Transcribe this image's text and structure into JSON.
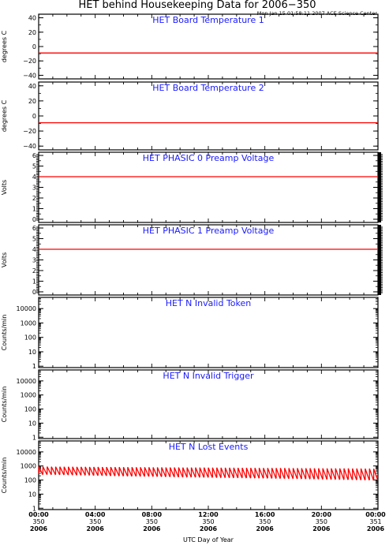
{
  "page": {
    "title": "HET behind Housekeeping Data for 2006−350",
    "timestamp": "Mon Jan 15 01:58:11 2007 ACE Science Center",
    "xlabel": "UTC Day of Year"
  },
  "x_ticks": [
    {
      "time": "00:00",
      "day": "350",
      "year": "2006"
    },
    {
      "time": "04:00",
      "day": "350",
      "year": "2006"
    },
    {
      "time": "08:00",
      "day": "350",
      "year": "2006"
    },
    {
      "time": "12:00",
      "day": "350",
      "year": "2006"
    },
    {
      "time": "16:00",
      "day": "350",
      "year": "2006"
    },
    {
      "time": "20:00",
      "day": "350",
      "year": "2006"
    },
    {
      "time": "00:00",
      "day": "351",
      "year": "2006"
    }
  ],
  "colors": {
    "frame": "#000000",
    "title": "#1a1aff",
    "data": "#ff0000"
  },
  "chart_data": [
    {
      "type": "line",
      "title": "HET Board Temperature 1",
      "ylabel": "degrees C",
      "yscale": "linear",
      "ylim": [
        -45,
        45
      ],
      "yticks": [
        40,
        20,
        0,
        -20,
        -40
      ],
      "ytick_labels": [
        "40",
        "20",
        "0",
        "−20",
        "−40"
      ],
      "xlim_hours": [
        0,
        24
      ],
      "series": [
        {
          "x_hours": [
            0,
            24
          ],
          "values": [
            -9,
            -9
          ]
        }
      ]
    },
    {
      "type": "line",
      "title": "HET Board Temperature 2",
      "ylabel": "degrees C",
      "yscale": "linear",
      "ylim": [
        -45,
        45
      ],
      "yticks": [
        40,
        20,
        0,
        -20,
        -40
      ],
      "ytick_labels": [
        "40",
        "20",
        "0",
        "−20",
        "−40"
      ],
      "xlim_hours": [
        0,
        24
      ],
      "series": [
        {
          "x_hours": [
            0,
            24
          ],
          "values": [
            -9,
            -9
          ]
        }
      ]
    },
    {
      "type": "line",
      "title": "HET PHASIC 0 Preamp Voltage",
      "ylabel": "Volts",
      "yscale": "linear",
      "ylim": [
        -0.3,
        6.3
      ],
      "yticks": [
        0,
        1,
        2,
        3,
        4,
        5,
        6
      ],
      "ytick_labels": [
        "0",
        "1",
        "2",
        "3",
        "4",
        "5",
        "6"
      ],
      "xlim_hours": [
        0,
        24
      ],
      "series": [
        {
          "x_hours": [
            0,
            24
          ],
          "values": [
            4.0,
            4.0
          ]
        }
      ]
    },
    {
      "type": "line",
      "title": "HET PHASIC 1 Preamp Voltage",
      "ylabel": "Volts",
      "yscale": "linear",
      "ylim": [
        -0.3,
        6.3
      ],
      "yticks": [
        0,
        1,
        2,
        3,
        4,
        5,
        6
      ],
      "ytick_labels": [
        "0",
        "1",
        "2",
        "3",
        "4",
        "5",
        "6"
      ],
      "xlim_hours": [
        0,
        24
      ],
      "series": [
        {
          "x_hours": [
            0,
            24
          ],
          "values": [
            4.0,
            4.0
          ]
        }
      ]
    },
    {
      "type": "line",
      "title": "HET N Invalid Token",
      "ylabel": "Counts/min",
      "yscale": "log",
      "ylim": [
        0.8,
        60000
      ],
      "yticks": [
        1,
        10,
        100,
        1000,
        10000
      ],
      "ytick_labels": [
        "1",
        "10",
        "100",
        "1000",
        "10000"
      ],
      "xlim_hours": [
        0,
        24
      ],
      "series": []
    },
    {
      "type": "line",
      "title": "HET N Invalid Trigger",
      "ylabel": "Counts/min",
      "yscale": "log",
      "ylim": [
        0.8,
        60000
      ],
      "yticks": [
        1,
        10,
        100,
        1000,
        10000
      ],
      "ytick_labels": [
        "1",
        "10",
        "100",
        "1000",
        "10000"
      ],
      "xlim_hours": [
        0,
        24
      ],
      "series": []
    },
    {
      "type": "line",
      "title": "HET N Lost Events",
      "ylabel": "Counts/min",
      "yscale": "log",
      "ylim": [
        0.8,
        60000
      ],
      "yticks": [
        1,
        10,
        100,
        1000,
        10000
      ],
      "ytick_labels": [
        "1",
        "10",
        "100",
        "1000",
        "10000"
      ],
      "xlim_hours": [
        0,
        24
      ],
      "series": [
        {
          "kind": "sawtooth",
          "x_hours": [
            0,
            2,
            4,
            6,
            8,
            10,
            12,
            14,
            16,
            18,
            20,
            22,
            24
          ],
          "upper": [
            900,
            870,
            850,
            820,
            800,
            780,
            760,
            740,
            720,
            700,
            680,
            660,
            640
          ],
          "lower": [
            260,
            240,
            220,
            200,
            185,
            170,
            160,
            150,
            140,
            130,
            120,
            110,
            100
          ],
          "cycles": 80
        }
      ]
    }
  ]
}
